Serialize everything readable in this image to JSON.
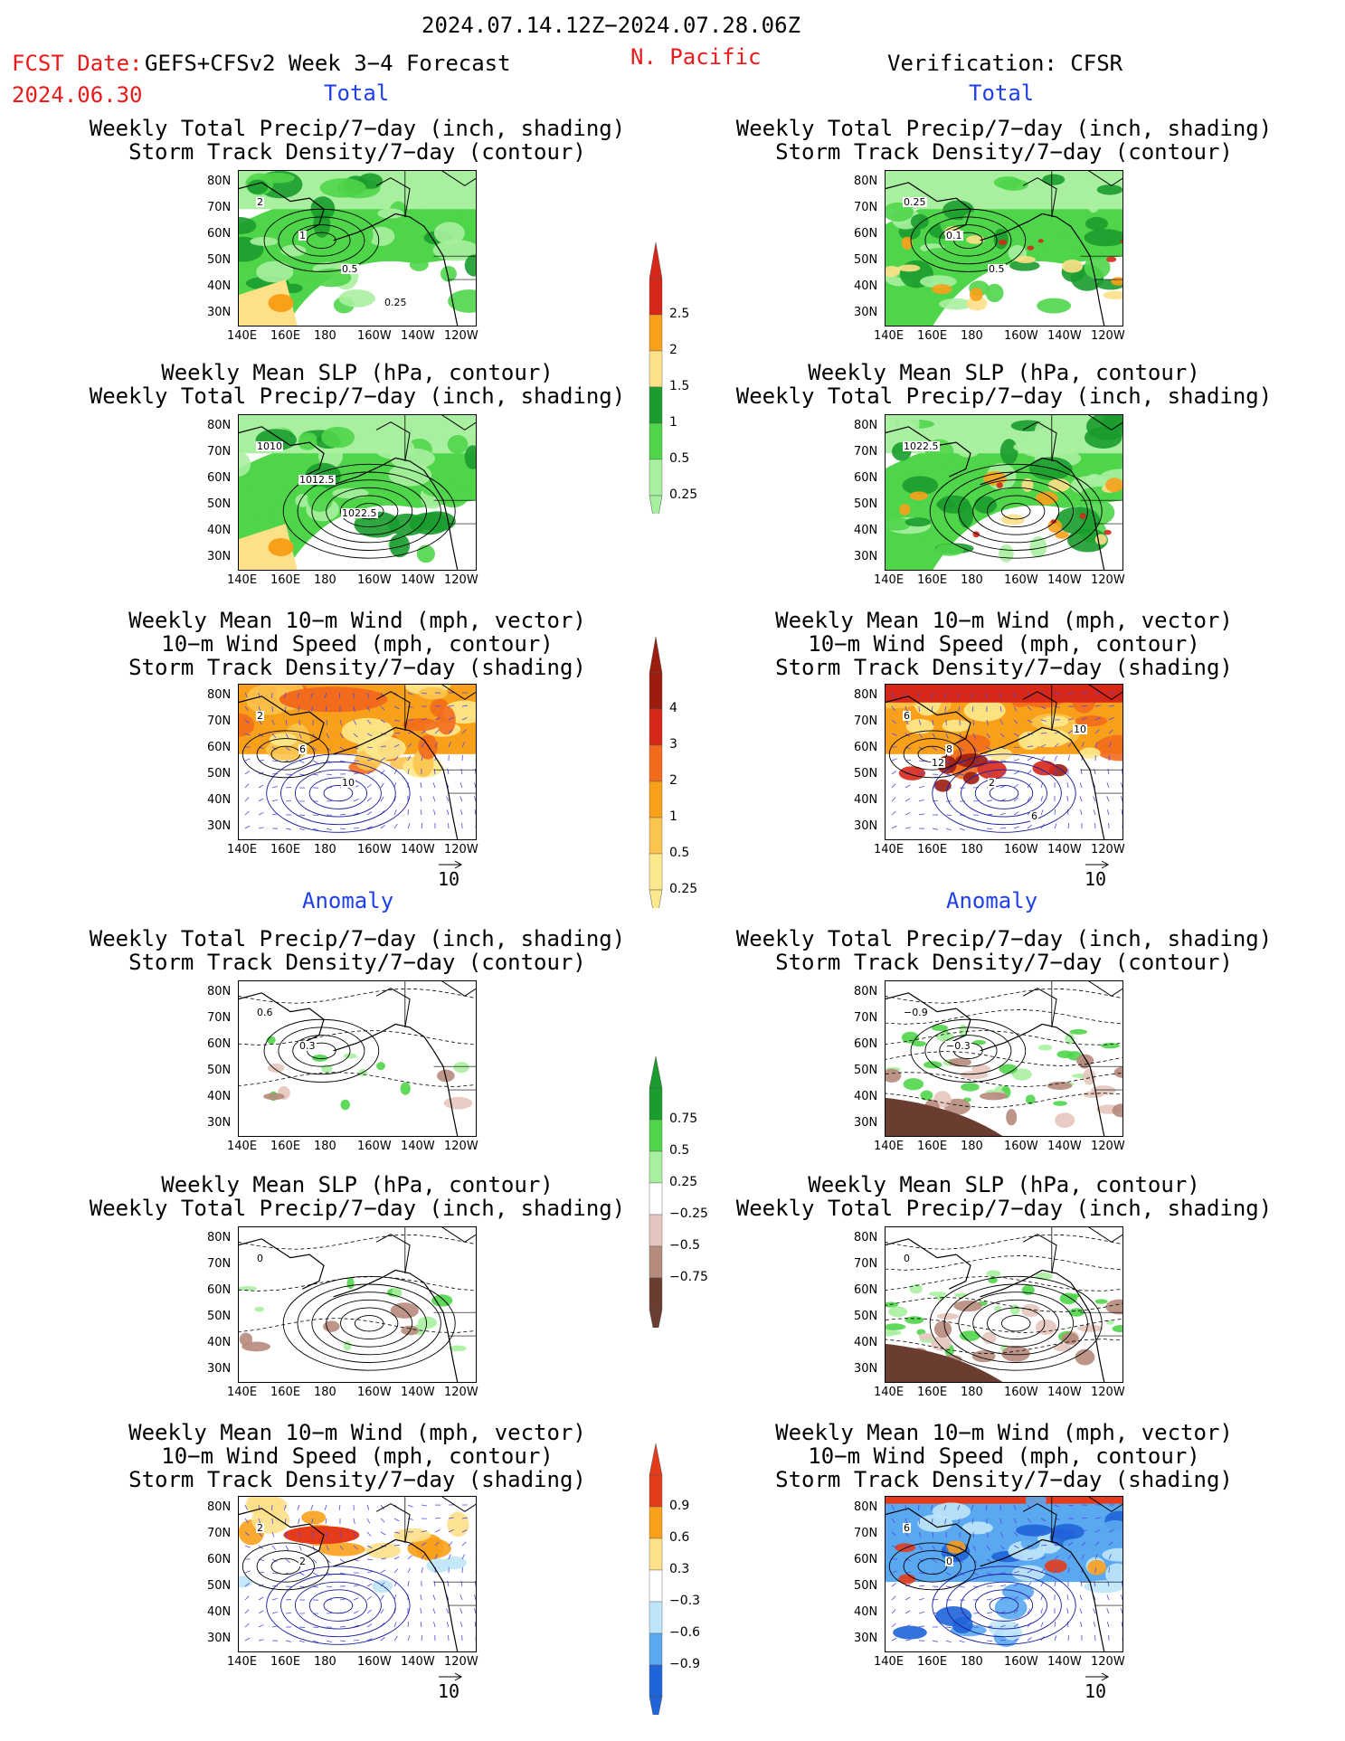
{
  "header": {
    "date_range": "2024.07.14.12Z−2024.07.28.06Z",
    "fcst_date_label": "FCST Date:",
    "fcst_model": "GEFS+CFSv2 Week 3−4 Forecast",
    "fcst_date": "2024.06.30",
    "region": "N. Pacific",
    "verification": "Verification: CFSR"
  },
  "sections": {
    "total": "Total",
    "anomaly": "Anomaly"
  },
  "axes": {
    "x_ticks": [
      "140E",
      "160E",
      "180",
      "160W",
      "140W",
      "120W"
    ],
    "y_ticks": [
      "80N",
      "70N",
      "60N",
      "50N",
      "40N",
      "30N"
    ]
  },
  "panel_titles": {
    "precip_storm": [
      "Weekly Total Precip/7−day (inch, shading)",
      "Storm Track Density/7−day (contour)"
    ],
    "slp_precip": [
      "Weekly Mean SLP (hPa, contour)",
      "Weekly Total Precip/7−day (inch, shading)"
    ],
    "wind_storm": [
      "Weekly Mean 10−m Wind (mph, vector)",
      "10−m Wind Speed (mph, contour)",
      "Storm Track Density/7−day (shading)"
    ]
  },
  "vector_ref": "10",
  "colorbars": {
    "precip_total": {
      "labels": [
        "2.5",
        "2",
        "1.5",
        "1",
        "0.5",
        "0.25"
      ],
      "colors": [
        "#d62718",
        "#f9a01b",
        "#fde087",
        "#1a9c2e",
        "#4fd54a",
        "#a9efa0"
      ]
    },
    "storm_total": {
      "labels": [
        "4",
        "3",
        "2",
        "1",
        "0.5",
        "0.25"
      ],
      "colors": [
        "#9c1c10",
        "#d62718",
        "#f26b1c",
        "#f9a01b",
        "#fbc44c",
        "#fde98d"
      ]
    },
    "precip_anom": {
      "labels": [
        "0.75",
        "0.5",
        "0.25",
        "−0.25",
        "−0.5",
        "−0.75"
      ],
      "colors": [
        "#1a9c2e",
        "#4fd54a",
        "#a9efa0",
        "#ffffff",
        "#e5c5bd",
        "#b68a7c",
        "#6b3d30"
      ]
    },
    "storm_anom": {
      "labels": [
        "0.9",
        "0.6",
        "0.3",
        "−0.3",
        "−0.6",
        "−0.9"
      ],
      "colors": [
        "#e43b1a",
        "#f9a01b",
        "#fde087",
        "#ffffff",
        "#bfe6f8",
        "#5aa8f0",
        "#1f64d8"
      ]
    }
  },
  "contour_labels": {
    "fcst_storm_total": [
      "2",
      "1",
      "0.5",
      "0.25"
    ],
    "fcst_slp_total": [
      "1010",
      "1012.5",
      "1022.5"
    ],
    "fcst_wind_total": [
      "2",
      "6",
      "10"
    ],
    "obs_storm_total": [
      "0.25",
      "0.1",
      "0.5"
    ],
    "obs_slp_total": [
      "1022.5"
    ],
    "obs_wind_total": [
      "6",
      "8",
      "2",
      "6",
      "10",
      "12"
    ],
    "fcst_storm_anom": [
      "0.6",
      "0.3"
    ],
    "fcst_slp_anom": [
      "0"
    ],
    "fcst_wind_anom": [
      "2",
      "2"
    ],
    "obs_storm_anom": [
      "−0.9",
      "−0.3"
    ],
    "obs_slp_anom": [
      "0"
    ],
    "obs_wind_anom": [
      "6",
      "0"
    ]
  }
}
